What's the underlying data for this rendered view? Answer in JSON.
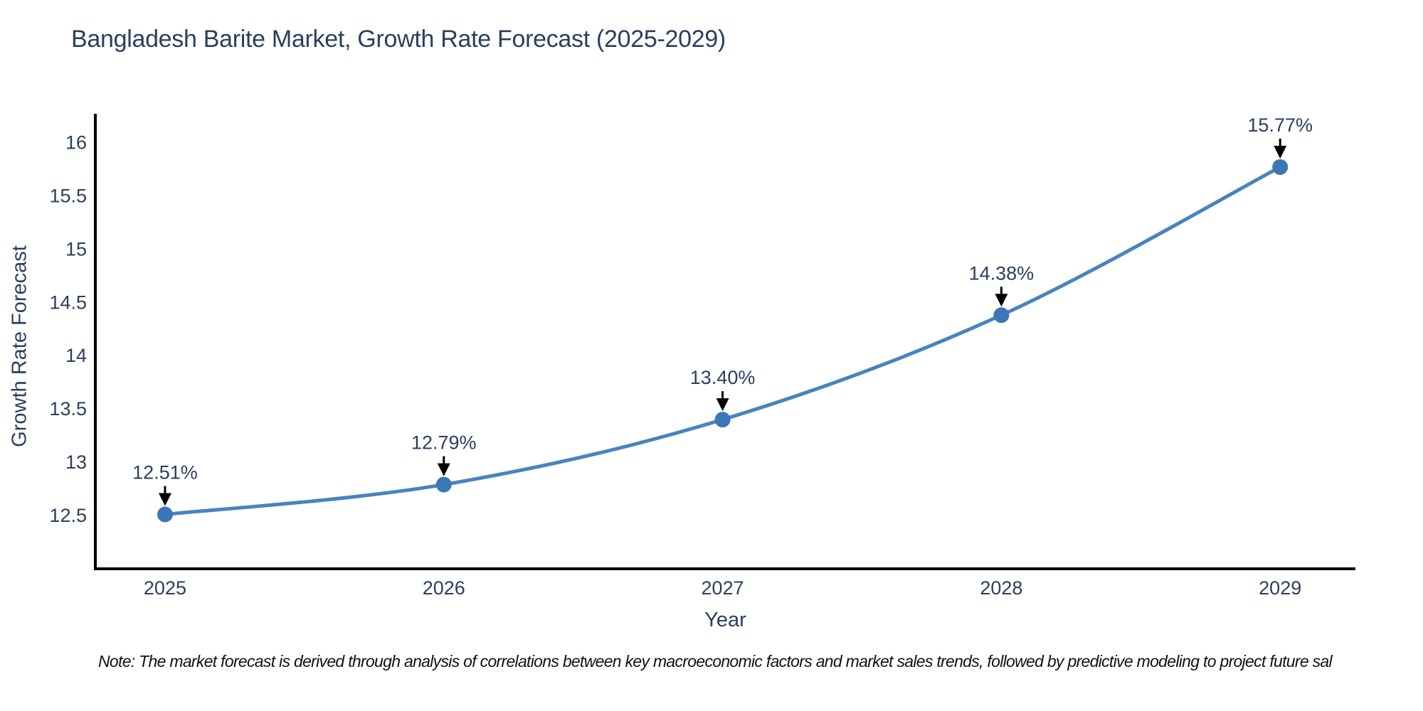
{
  "title": "Bangladesh Barite Market, Growth Rate Forecast (2025-2029)",
  "footnote": "Note: The market forecast is derived through analysis of correlations between key macroeconomic factors and market sales trends, followed by predictive modeling to project future sal",
  "colors": {
    "background": "#ffffff",
    "title_text": "#2a3f5f",
    "axis_text": "#2a3f5f",
    "axis_line": "#000000",
    "series_line": "#4784bf",
    "marker_fill": "#3b77b5",
    "annotation_text": "#2a3f5f",
    "annotation_arrow": "#000000",
    "footnote_text": "#111111"
  },
  "chart_data": {
    "type": "line",
    "title": "Bangladesh Barite Market, Growth Rate Forecast (2025-2029)",
    "xlabel": "Year",
    "ylabel": "Growth Rate Forecast",
    "x": [
      2025,
      2026,
      2027,
      2028,
      2029
    ],
    "values": [
      12.51,
      12.79,
      13.4,
      14.38,
      15.77
    ],
    "point_labels": [
      "12.51%",
      "12.79%",
      "13.40%",
      "14.38%",
      "15.77%"
    ],
    "series_name": "Growth Rate Forecast",
    "xticks": [
      "2025",
      "2026",
      "2027",
      "2028",
      "2029"
    ],
    "yticks": [
      12.5,
      13,
      13.5,
      14,
      14.5,
      15,
      15.5,
      16
    ],
    "xlim": [
      2024.75,
      2029.27
    ],
    "ylim": [
      12.0,
      16.27
    ],
    "grid": false,
    "legend": false,
    "line_shape": "spline",
    "annotations": "arrow-down-to-point"
  }
}
